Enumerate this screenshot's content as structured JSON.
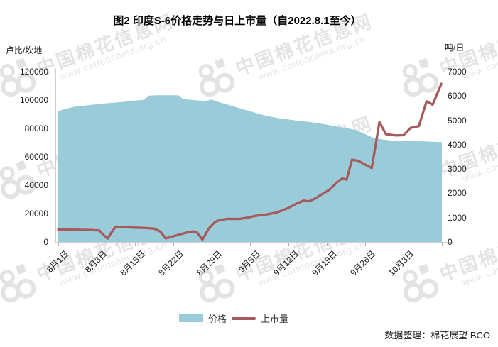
{
  "title": "图2 印度S-6价格走势与日上市量（自2022.8.1至今）",
  "left_axis": {
    "unit": "卢比/坎地",
    "min": 0,
    "max": 120000,
    "step": 20000,
    "ticks": [
      0,
      20000,
      40000,
      60000,
      80000,
      100000,
      120000
    ]
  },
  "right_axis": {
    "unit": "吨/日",
    "min": 0,
    "max": 7000,
    "step": 1000,
    "ticks": [
      0,
      1000,
      2000,
      3000,
      4000,
      5000,
      6000,
      7000
    ]
  },
  "x_axis": {
    "labels": [
      "8月1日",
      "8月8日",
      "8月15日",
      "8月22日",
      "8月29日",
      "9月5日",
      "9月12日",
      "9月19日",
      "9月26日",
      "10月3日"
    ]
  },
  "legend": {
    "price_label": "价格",
    "volume_label": "上市量"
  },
  "source": "数据整理：棉花展望 BCO",
  "watermark": {
    "name": "中国棉花信息网",
    "url": "www.cottonchina.org.cn"
  },
  "colors": {
    "price_area": "#99CBD9",
    "volume_line": "#A75A5C",
    "axis_line": "#cfcfcf"
  },
  "chart_data": {
    "type": "combo",
    "title": "图2 印度S-6价格走势与日上市量（自2022.8.1至今）",
    "x_encoding": "days since 2022-08-01 (daily data, 2022-08-01 to 2022-10-10)",
    "x_tick_labels": [
      "8月1日",
      "8月8日",
      "8月15日",
      "8月22日",
      "8月29日",
      "9月5日",
      "9月12日",
      "9月19日",
      "9月26日",
      "10月3日"
    ],
    "left_axis": {
      "label": "卢比/坎地",
      "range": [
        0,
        120000
      ],
      "step": 20000
    },
    "right_axis": {
      "label": "吨/日",
      "range": [
        0,
        7000
      ],
      "step": 1000
    },
    "grid": false,
    "legend_position": "bottom",
    "series": [
      {
        "name": "价格",
        "chart": "area",
        "axis": "left",
        "unit": "卢比/坎地",
        "color": "#99CBD9",
        "points": [
          [
            0,
            92000
          ],
          [
            1,
            93500
          ],
          [
            3,
            95300
          ],
          [
            5,
            96200
          ],
          [
            7,
            97000
          ],
          [
            9,
            97800
          ],
          [
            11,
            98400
          ],
          [
            14,
            99600
          ],
          [
            15.5,
            100100
          ],
          [
            16.5,
            103100
          ],
          [
            18,
            103400
          ],
          [
            21,
            103400
          ],
          [
            22,
            103300
          ],
          [
            22.7,
            100800
          ],
          [
            24,
            100200
          ],
          [
            25.5,
            99700
          ],
          [
            27,
            99500
          ],
          [
            28,
            100300
          ],
          [
            29,
            98800
          ],
          [
            30,
            97800
          ],
          [
            32,
            95500
          ],
          [
            34,
            93200
          ],
          [
            36,
            91000
          ],
          [
            38,
            88800
          ],
          [
            40,
            87400
          ],
          [
            42,
            86300
          ],
          [
            44,
            85300
          ],
          [
            46,
            84500
          ],
          [
            48,
            83300
          ],
          [
            50,
            82000
          ],
          [
            51,
            81200
          ],
          [
            53,
            80000
          ],
          [
            54.5,
            78700
          ],
          [
            56,
            76000
          ],
          [
            57.5,
            73300
          ],
          [
            59,
            72400
          ],
          [
            61,
            71400
          ],
          [
            63,
            71100
          ],
          [
            65,
            71000
          ],
          [
            67,
            70900
          ],
          [
            69,
            70500
          ],
          [
            70,
            70300
          ]
        ]
      },
      {
        "name": "上市量",
        "chart": "line",
        "axis": "right",
        "unit": "吨/日",
        "color": "#A75A5C",
        "points": [
          [
            0,
            510
          ],
          [
            2,
            505
          ],
          [
            4,
            500
          ],
          [
            6,
            490
          ],
          [
            7.5,
            470
          ],
          [
            8.2,
            300
          ],
          [
            9,
            140
          ],
          [
            9.8,
            420
          ],
          [
            10.5,
            630
          ],
          [
            12,
            610
          ],
          [
            14,
            590
          ],
          [
            16,
            575
          ],
          [
            17.5,
            545
          ],
          [
            18.6,
            430
          ],
          [
            19.6,
            150
          ],
          [
            20.5,
            200
          ],
          [
            22,
            300
          ],
          [
            23.5,
            390
          ],
          [
            24.5,
            435
          ],
          [
            25.3,
            400
          ],
          [
            26.3,
            95
          ],
          [
            27.5,
            560
          ],
          [
            28.6,
            820
          ],
          [
            29.5,
            905
          ],
          [
            31,
            950
          ],
          [
            33,
            945
          ],
          [
            34.5,
            1000
          ],
          [
            36,
            1070
          ],
          [
            38,
            1130
          ],
          [
            40,
            1220
          ],
          [
            42,
            1400
          ],
          [
            43.5,
            1580
          ],
          [
            44.8,
            1700
          ],
          [
            45.8,
            1670
          ],
          [
            47,
            1800
          ],
          [
            48.3,
            1990
          ],
          [
            49.5,
            2150
          ],
          [
            51,
            2480
          ],
          [
            51.8,
            2610
          ],
          [
            52.6,
            2560
          ],
          [
            53.6,
            3380
          ],
          [
            54.8,
            3330
          ],
          [
            56,
            3180
          ],
          [
            57.2,
            3040
          ],
          [
            58.6,
            4930
          ],
          [
            59.8,
            4430
          ],
          [
            61.5,
            4380
          ],
          [
            63,
            4390
          ],
          [
            64.3,
            4690
          ],
          [
            65.8,
            4760
          ],
          [
            67.2,
            5780
          ],
          [
            68.3,
            5640
          ],
          [
            69.9,
            6500
          ]
        ]
      }
    ]
  }
}
